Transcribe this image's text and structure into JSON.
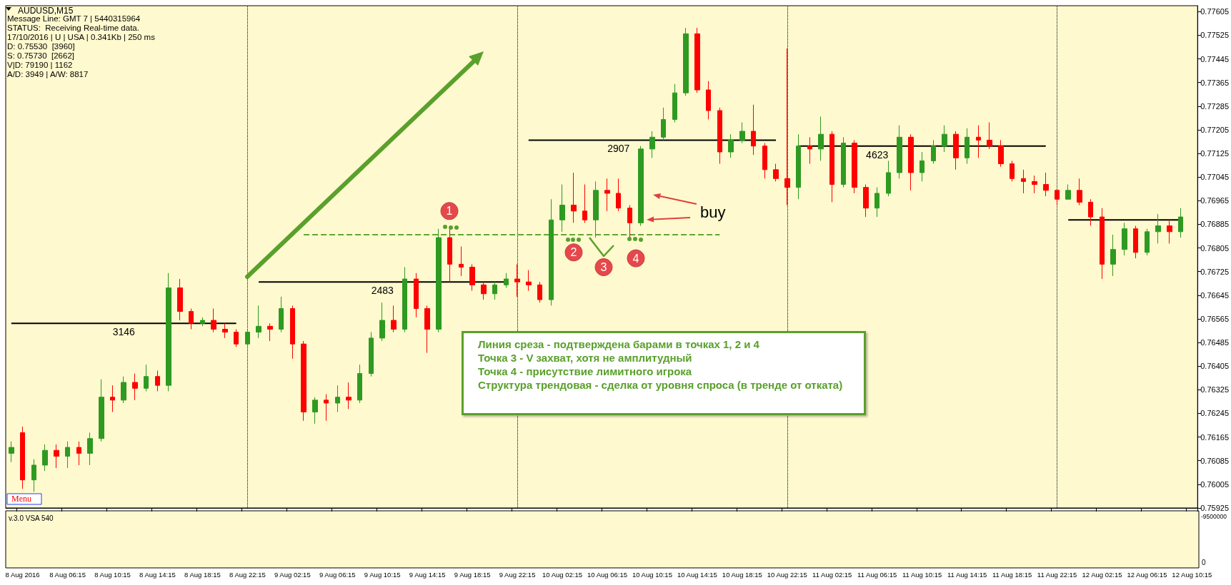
{
  "chart_data": {
    "type": "candlestick",
    "title": "AUDUSD,M15",
    "grid": false,
    "legend": false,
    "colors": [
      "#2e9a22",
      "#ff0000",
      "#2e9a22",
      "#2e9a22",
      "#ff0000",
      "#2e9a22",
      "#ff0000",
      "#2e9a22",
      "#2e9a22",
      "#ff0000",
      "#2e9a22",
      "#ff0000",
      "#2e9a22",
      "#ff0000",
      "#2e9a22",
      "#ff0000",
      "#ff0000",
      "#2e9a22",
      "#ff0000",
      "#ff0000",
      "#ff0000",
      "#2e9a22",
      "#2e9a22",
      "#ff0000",
      "#2e9a22",
      "#ff0000",
      "#ff0000",
      "#2e9a22",
      "#ff0000",
      "#2e9a22",
      "#ff0000",
      "#2e9a22",
      "#2e9a22",
      "#2e9a22",
      "#ff0000",
      "#2e9a22",
      "#ff0000",
      "#ff0000",
      "#2e9a22",
      "#ff0000",
      "#ff0000",
      "#ff0000",
      "#ff0000",
      "#2e9a22",
      "#2e9a22",
      "#ff0000",
      "#ff0000",
      "#ff0000",
      "#2e9a22",
      "#2e9a22",
      "#ff0000",
      "#ff0000",
      "#2e9a22",
      "#ff0000",
      "#ff0000",
      "#ff0000",
      "#2e9a22",
      "#2e9a22",
      "#2e9a22",
      "#2e9a22",
      "#2e9a22",
      "#ff0000",
      "#ff0000",
      "#ff0000",
      "#2e9a22",
      "#2e9a22",
      "#ff0000",
      "#ff0000",
      "#ff0000",
      "#ff0000",
      "#2e9a22",
      "#ff0000",
      "#2e9a22",
      "#ff0000",
      "#2e9a22",
      "#ff0000",
      "#ff0000",
      "#2e9a22",
      "#2e9a22",
      "#2e9a22",
      "#ff0000",
      "#2e9a22",
      "#2e9a22",
      "#2e9a22",
      "#ff0000",
      "#2e9a22",
      "#ff0000",
      "#ff0000",
      "#ff0000",
      "#ff0000",
      "#ff0000",
      "#ff0000",
      "#ff0000",
      "#ff0000",
      "#2e9a22",
      "#ff0000",
      "#ff0000",
      "#ff0000",
      "#2e9a22",
      "#2e9a22",
      "#ff0000",
      "#2e9a22",
      "#2e9a22",
      "#ff0000",
      "#2e9a22",
      null
    ],
    "categories": [
      null,
      "8 Aug 2016",
      null,
      null,
      null,
      "8 Aug 06:15",
      null,
      null,
      null,
      "8 Aug 10:15",
      null,
      null,
      null,
      "8 Aug 14:15",
      null,
      null,
      null,
      "8 Aug 18:15",
      null,
      null,
      null,
      "8 Aug 22:15",
      null,
      null,
      null,
      "9 Aug 02:15",
      null,
      null,
      null,
      "9 Aug 06:15",
      null,
      null,
      null,
      "9 Aug 10:15",
      null,
      null,
      null,
      "9 Aug 14:15",
      null,
      null,
      null,
      "9 Aug 18:15",
      null,
      null,
      null,
      "9 Aug 22:15",
      null,
      null,
      null,
      "10 Aug 02:15",
      null,
      null,
      null,
      "10 Aug 06:15",
      null,
      null,
      null,
      "10 Aug 10:15",
      null,
      null,
      null,
      "10 Aug 14:15",
      null,
      null,
      null,
      "10 Aug 18:15",
      null,
      null,
      null,
      "10 Aug 22:15",
      null,
      null,
      null,
      "11 Aug 02:15",
      null,
      null,
      null,
      "11 Aug 06:15",
      null,
      null,
      null,
      "11 Aug 10:15",
      null,
      null,
      null,
      "11 Aug 14:15",
      null,
      null,
      null,
      "11 Aug 18:15",
      null,
      null,
      null,
      "11 Aug 22:15",
      null,
      null,
      null,
      "12 Aug 02:15",
      null,
      null,
      null,
      "12 Aug 06:15",
      null,
      null,
      null,
      "12 Aug 10:15"
    ],
    "ohlc": [
      [
        0.7611,
        0.7615,
        0.7608,
        0.7613
      ],
      [
        0.7618,
        0.762,
        0.7599,
        0.7602
      ],
      [
        0.7602,
        0.7609,
        0.7598,
        0.7607
      ],
      [
        0.7607,
        0.7614,
        0.7605,
        0.7612
      ],
      [
        0.7612,
        0.7614,
        0.7606,
        0.761
      ],
      [
        0.761,
        0.7615,
        0.7606,
        0.7613
      ],
      [
        0.7613,
        0.7615,
        0.7607,
        0.7611
      ],
      [
        0.7611,
        0.7618,
        0.7607,
        0.7616
      ],
      [
        0.7616,
        0.7636,
        0.7615,
        0.763
      ],
      [
        0.763,
        0.7634,
        0.7625,
        0.7629
      ],
      [
        0.7629,
        0.7637,
        0.7628,
        0.7635
      ],
      [
        0.7635,
        0.7638,
        0.7629,
        0.7633
      ],
      [
        0.7633,
        0.7641,
        0.7632,
        0.7637
      ],
      [
        0.7637,
        0.7639,
        0.7632,
        0.7634
      ],
      [
        0.7634,
        0.7672,
        0.7632,
        0.7667
      ],
      [
        0.7667,
        0.767,
        0.7656,
        0.7659
      ],
      [
        0.7659,
        0.766,
        0.7653,
        0.7655
      ],
      [
        0.7655,
        0.7657,
        0.7654,
        0.7656
      ],
      [
        0.7656,
        0.766,
        0.7652,
        0.7653
      ],
      [
        0.7653,
        0.7655,
        0.765,
        0.7652
      ],
      [
        0.7652,
        0.7653,
        0.7647,
        0.7648
      ],
      [
        0.7648,
        0.7653,
        0.7647,
        0.7652
      ],
      [
        0.7652,
        0.7661,
        0.765,
        0.7654
      ],
      [
        0.7654,
        0.7655,
        0.7649,
        0.7653
      ],
      [
        0.7653,
        0.7664,
        0.7652,
        0.766
      ],
      [
        0.766,
        0.7661,
        0.7643,
        0.7648
      ],
      [
        0.7648,
        0.7649,
        0.7622,
        0.7625
      ],
      [
        0.7625,
        0.763,
        0.7621,
        0.7629
      ],
      [
        0.7629,
        0.7631,
        0.7622,
        0.7628
      ],
      [
        0.7628,
        0.7634,
        0.7625,
        0.763
      ],
      [
        0.763,
        0.7635,
        0.7626,
        0.7629
      ],
      [
        0.7629,
        0.7641,
        0.7628,
        0.7638
      ],
      [
        0.7638,
        0.7652,
        0.7637,
        0.765
      ],
      [
        0.765,
        0.7662,
        0.7649,
        0.7656
      ],
      [
        0.7656,
        0.7661,
        0.7652,
        0.7653
      ],
      [
        0.7653,
        0.7674,
        0.7652,
        0.767
      ],
      [
        0.767,
        0.7672,
        0.7657,
        0.766
      ],
      [
        0.766,
        0.7661,
        0.7645,
        0.7653
      ],
      [
        0.7653,
        0.7687,
        0.7652,
        0.7684
      ],
      [
        0.7684,
        0.7687,
        0.7669,
        0.7675
      ],
      [
        0.7675,
        0.7681,
        0.7671,
        0.7674
      ],
      [
        0.7674,
        0.7675,
        0.7666,
        0.7668
      ],
      [
        0.7668,
        0.7669,
        0.7663,
        0.7665
      ],
      [
        0.7665,
        0.7669,
        0.7663,
        0.7668
      ],
      [
        0.7668,
        0.7672,
        0.7667,
        0.767
      ],
      [
        0.767,
        0.7675,
        0.7664,
        0.7669
      ],
      [
        0.7669,
        0.7673,
        0.7666,
        0.7668
      ],
      [
        0.7668,
        0.7669,
        0.7662,
        0.7663
      ],
      [
        0.7663,
        0.7697,
        0.7661,
        0.769
      ],
      [
        0.769,
        0.7702,
        0.7686,
        0.7695
      ],
      [
        0.7695,
        0.7706,
        0.7689,
        0.7693
      ],
      [
        0.7693,
        0.7702,
        0.7689,
        0.769
      ],
      [
        0.769,
        0.7703,
        0.7684,
        0.77
      ],
      [
        0.77,
        0.7704,
        0.7693,
        0.7699
      ],
      [
        0.7699,
        0.7704,
        0.7693,
        0.7694
      ],
      [
        0.7694,
        0.7695,
        0.7684,
        0.7689
      ],
      [
        0.7689,
        0.7715,
        0.7688,
        0.7714
      ],
      [
        0.7714,
        0.772,
        0.7711,
        0.7718
      ],
      [
        0.7718,
        0.7728,
        0.7717,
        0.7724
      ],
      [
        0.7724,
        0.7736,
        0.7723,
        0.7733
      ],
      [
        0.7733,
        0.7755,
        0.7732,
        0.7753
      ],
      [
        0.7753,
        0.7755,
        0.7733,
        0.7734
      ],
      [
        0.7734,
        0.7737,
        0.7724,
        0.7727
      ],
      [
        0.7727,
        0.7728,
        0.7709,
        0.7713
      ],
      [
        0.7713,
        0.7719,
        0.7711,
        0.7717
      ],
      [
        0.7717,
        0.7723,
        0.7716,
        0.772
      ],
      [
        0.772,
        0.7729,
        0.7712,
        0.7715
      ],
      [
        0.7715,
        0.7716,
        0.7704,
        0.7707
      ],
      [
        0.7707,
        0.7709,
        0.7703,
        0.7704
      ],
      [
        0.7704,
        0.7748,
        0.7695,
        0.7701
      ],
      [
        0.7701,
        0.7719,
        0.7697,
        0.7715
      ],
      [
        0.7715,
        0.7718,
        0.7709,
        0.7714
      ],
      [
        0.7714,
        0.7725,
        0.771,
        0.7719
      ],
      [
        0.7719,
        0.772,
        0.7696,
        0.7702
      ],
      [
        0.7702,
        0.7718,
        0.7701,
        0.7716
      ],
      [
        0.7716,
        0.7717,
        0.7699,
        0.7701
      ],
      [
        0.7701,
        0.7702,
        0.7691,
        0.7694
      ],
      [
        0.7694,
        0.7701,
        0.7691,
        0.7699
      ],
      [
        0.7699,
        0.771,
        0.7698,
        0.7706
      ],
      [
        0.7706,
        0.7722,
        0.7704,
        0.7718
      ],
      [
        0.7718,
        0.7719,
        0.77,
        0.7706
      ],
      [
        0.7706,
        0.7713,
        0.7703,
        0.771
      ],
      [
        0.771,
        0.7717,
        0.7709,
        0.7715
      ],
      [
        0.7715,
        0.7722,
        0.7713,
        0.7719
      ],
      [
        0.7719,
        0.772,
        0.7707,
        0.7711
      ],
      [
        0.7711,
        0.7721,
        0.7709,
        0.7718
      ],
      [
        0.7718,
        0.7722,
        0.7711,
        0.7717
      ],
      [
        0.7717,
        0.7723,
        0.7714,
        0.7715
      ],
      [
        0.7715,
        0.7717,
        0.7708,
        0.7709
      ],
      [
        0.7709,
        0.771,
        0.7703,
        0.7704
      ],
      [
        0.7704,
        0.7707,
        0.7699,
        0.7703
      ],
      [
        0.7703,
        0.7705,
        0.7699,
        0.7702
      ],
      [
        0.7702,
        0.7706,
        0.7698,
        0.77
      ],
      [
        0.77,
        0.77,
        0.7695,
        0.7697
      ],
      [
        0.7697,
        0.7702,
        0.7697,
        0.77
      ],
      [
        0.77,
        0.7704,
        0.7695,
        0.7696
      ],
      [
        0.7696,
        0.7697,
        0.7688,
        0.7691
      ],
      [
        0.7691,
        0.7694,
        0.767,
        0.7675
      ],
      [
        0.7675,
        0.7685,
        0.7671,
        0.768
      ],
      [
        0.768,
        0.7689,
        0.7678,
        0.7687
      ],
      [
        0.7687,
        0.7688,
        0.7677,
        0.7679
      ],
      [
        0.7679,
        0.7687,
        0.7678,
        0.7686
      ],
      [
        0.7686,
        0.7692,
        0.7682,
        0.7688
      ],
      [
        0.7688,
        0.769,
        0.7682,
        0.7686
      ],
      [
        0.7686,
        0.7694,
        0.7684,
        0.7691
      ],
      null
    ],
    "ylim": [
      0.75925,
      0.77625
    ],
    "yticks": [
      0.75925,
      0.76005,
      0.76085,
      0.76165,
      0.76245,
      0.76325,
      0.76405,
      0.76485,
      0.76565,
      0.76645,
      0.76725,
      0.76805,
      0.76885,
      0.76965,
      0.77045,
      0.77125,
      0.77205,
      0.77285,
      0.77365,
      0.77445,
      0.77525,
      0.77605
    ],
    "series": [
      {
        "type": "line",
        "name": "3146",
        "color": "#000000",
        "values": [
          0.7655,
          0.7655,
          0.7655,
          0.7655,
          0.7655,
          0.7655,
          0.7655,
          0.7655,
          0.7655,
          0.7655,
          0.7655,
          0.7655,
          0.7655,
          0.7655,
          0.7655,
          0.7655,
          0.7655,
          0.7655,
          0.7655,
          0.7655,
          0.7655,
          null,
          null,
          null,
          null,
          null,
          null,
          null,
          null,
          null,
          null,
          null,
          null,
          null,
          null,
          null,
          null,
          null,
          null,
          null,
          null,
          null,
          null,
          null,
          null,
          null,
          null,
          null,
          null,
          null,
          null,
          null,
          null,
          null,
          null,
          null,
          null,
          null,
          null,
          null,
          null,
          null,
          null,
          null,
          null,
          null,
          null,
          null,
          null,
          null,
          null,
          null,
          null,
          null,
          null,
          null,
          null,
          null,
          null,
          null,
          null,
          null,
          null,
          null,
          null,
          null,
          null,
          null,
          null,
          null,
          null,
          null,
          null,
          null,
          null,
          null,
          null,
          null,
          null,
          null,
          null,
          null,
          null,
          null,
          null,
          null
        ]
      },
      {
        "type": "line",
        "name": "2483",
        "color": "#000000",
        "values": [
          null,
          null,
          null,
          null,
          null,
          null,
          null,
          null,
          null,
          null,
          null,
          null,
          null,
          null,
          null,
          null,
          null,
          null,
          null,
          null,
          null,
          null,
          0.7669,
          0.7669,
          0.7669,
          0.7669,
          0.7669,
          0.7669,
          0.7669,
          0.7669,
          0.7669,
          0.7669,
          0.7669,
          0.7669,
          0.7669,
          0.7669,
          0.7669,
          0.7669,
          0.7669,
          0.7669,
          0.7669,
          0.7669,
          0.7669,
          0.7669,
          0.7669,
          null,
          null,
          null,
          null,
          null,
          null,
          null,
          null,
          null,
          null,
          null,
          null,
          null,
          null,
          null,
          null,
          null,
          null,
          null,
          null,
          null,
          null,
          null,
          null,
          null,
          null,
          null,
          null,
          null,
          null,
          null,
          null,
          null,
          null,
          null,
          null,
          null,
          null,
          null,
          null,
          null,
          null,
          null,
          null,
          null,
          null,
          null,
          null,
          null,
          null,
          null,
          null,
          null,
          null,
          null,
          null,
          null,
          null,
          null,
          null,
          null
        ]
      },
      {
        "type": "line",
        "name": "2907",
        "color": "#000000",
        "values": [
          null,
          null,
          null,
          null,
          null,
          null,
          null,
          null,
          null,
          null,
          null,
          null,
          null,
          null,
          null,
          null,
          null,
          null,
          null,
          null,
          null,
          null,
          null,
          null,
          null,
          null,
          null,
          null,
          null,
          null,
          null,
          null,
          null,
          null,
          null,
          null,
          null,
          null,
          null,
          null,
          null,
          null,
          null,
          null,
          null,
          null,
          0.7717,
          0.7717,
          0.7717,
          0.7717,
          0.7717,
          0.7717,
          0.7717,
          0.7717,
          0.7717,
          0.7717,
          0.7717,
          0.7717,
          0.7717,
          0.7717,
          0.7717,
          0.7717,
          0.7717,
          0.7717,
          0.7717,
          0.7717,
          0.7717,
          0.7717,
          0.7717,
          null,
          null,
          null,
          null,
          null,
          null,
          null,
          null,
          null,
          null,
          null,
          null,
          null,
          null,
          null,
          null,
          null,
          null,
          null,
          null,
          null,
          null,
          null,
          null,
          null,
          null,
          null,
          null,
          null,
          null,
          null,
          null,
          null,
          null,
          null,
          null,
          null
        ]
      },
      {
        "type": "line",
        "name": "4623",
        "color": "#000000",
        "values": [
          null,
          null,
          null,
          null,
          null,
          null,
          null,
          null,
          null,
          null,
          null,
          null,
          null,
          null,
          null,
          null,
          null,
          null,
          null,
          null,
          null,
          null,
          null,
          null,
          null,
          null,
          null,
          null,
          null,
          null,
          null,
          null,
          null,
          null,
          null,
          null,
          null,
          null,
          null,
          null,
          null,
          null,
          null,
          null,
          null,
          null,
          null,
          null,
          null,
          null,
          null,
          null,
          null,
          null,
          null,
          null,
          null,
          null,
          null,
          null,
          null,
          null,
          null,
          null,
          null,
          null,
          null,
          null,
          null,
          null,
          0.7715,
          0.7715,
          0.7715,
          0.7715,
          0.7715,
          0.7715,
          0.7715,
          0.7715,
          0.7715,
          0.7715,
          0.7715,
          0.7715,
          0.7715,
          0.7715,
          0.7715,
          0.7715,
          0.7715,
          0.7715,
          0.7715,
          0.7715,
          0.7715,
          0.7715,
          0.7715,
          null,
          null,
          null,
          null,
          null,
          null,
          null,
          null,
          null,
          null,
          null,
          null,
          null
        ]
      },
      {
        "type": "line",
        "color": "#000000",
        "values": [
          null,
          null,
          null,
          null,
          null,
          null,
          null,
          null,
          null,
          null,
          null,
          null,
          null,
          null,
          null,
          null,
          null,
          null,
          null,
          null,
          null,
          null,
          null,
          null,
          null,
          null,
          null,
          null,
          null,
          null,
          null,
          null,
          null,
          null,
          null,
          null,
          null,
          null,
          null,
          null,
          null,
          null,
          null,
          null,
          null,
          null,
          null,
          null,
          null,
          null,
          null,
          null,
          null,
          null,
          null,
          null,
          null,
          null,
          null,
          null,
          null,
          null,
          null,
          null,
          null,
          null,
          null,
          null,
          null,
          null,
          null,
          null,
          null,
          null,
          null,
          null,
          null,
          null,
          null,
          null,
          null,
          null,
          null,
          null,
          null,
          null,
          null,
          null,
          null,
          null,
          null,
          null,
          null,
          null,
          0.769,
          0.769,
          0.769,
          0.769,
          0.769,
          0.769,
          0.769,
          0.769,
          0.769,
          0.769,
          0.769,
          null
        ]
      },
      {
        "type": "line",
        "color": "#63a532",
        "line_style": "dashed",
        "values": [
          null,
          null,
          null,
          null,
          null,
          null,
          null,
          null,
          null,
          null,
          null,
          null,
          null,
          null,
          null,
          null,
          null,
          null,
          null,
          null,
          null,
          null,
          null,
          null,
          null,
          null,
          0.7685,
          0.7685,
          0.7685,
          0.7685,
          0.7685,
          0.7685,
          0.7685,
          0.7685,
          0.7685,
          0.7685,
          0.7685,
          0.7685,
          0.7685,
          0.7685,
          0.7685,
          0.7685,
          0.7685,
          0.7685,
          0.7685,
          0.7685,
          0.7685,
          0.7685,
          0.7685,
          0.7685,
          0.7685,
          0.7685,
          0.7685,
          0.7685,
          0.7685,
          0.7685,
          0.7685,
          0.7685,
          0.7685,
          0.7685,
          0.7685,
          0.7685,
          0.7685,
          0.7685,
          null,
          null,
          null,
          null,
          null,
          null,
          null,
          null,
          null,
          null,
          null,
          null,
          null,
          null,
          null,
          null,
          null,
          null,
          null,
          null,
          null,
          null,
          null,
          null,
          null,
          null,
          null,
          null,
          null,
          null,
          null,
          null,
          null,
          null,
          null,
          null,
          null,
          null,
          null,
          null,
          null,
          null
        ]
      }
    ],
    "ref_lines": [
      {
        "axis": "x",
        "value": "8 Aug 22:15",
        "label": null,
        "color": "#000000",
        "line_style": "dotted"
      },
      {
        "axis": "x",
        "value": "9 Aug 22:15",
        "label": null,
        "color": "#000000",
        "line_style": "dotted"
      },
      {
        "axis": "x",
        "value": "10 Aug 22:15",
        "label": null,
        "color": "#000000",
        "line_style": "dotted"
      },
      {
        "axis": "x",
        "value": "11 Aug 22:15",
        "label": null,
        "color": "#000000",
        "line_style": "dotted"
      }
    ],
    "annotations": [
      "Message Line: GMT 7 | 5440315964",
      "STATUS:  Receiving Real-time data.",
      "17/10/2016 | U | USA | 0.341Kb | 250 ms",
      "D: 0.75530  [3960]",
      "S: 0.75730  [2662]",
      "V|D: 79190 | 1162",
      "A/D: 3949 | A/W: 8817",
      "Menu",
      "Линия среза - подтверждена барами в точках 1, 2 и 4",
      "Точка 3 - V захват, хотя не амплитудный",
      "Точка 4 - присутствие лимитного игрока",
      "Структура трендовая - сделка от уровня спроса (в тренде от отката)",
      "v.3.0 VSA 540",
      "-9500000",
      "0",
      "buy",
      {
        "text": "1",
        "y": 0.7693
      },
      {
        "text": "2",
        "y": 0.7679
      },
      {
        "text": "3",
        "y": 0.7674
      },
      {
        "text": "4",
        "y": 0.7677
      }
    ]
  }
}
